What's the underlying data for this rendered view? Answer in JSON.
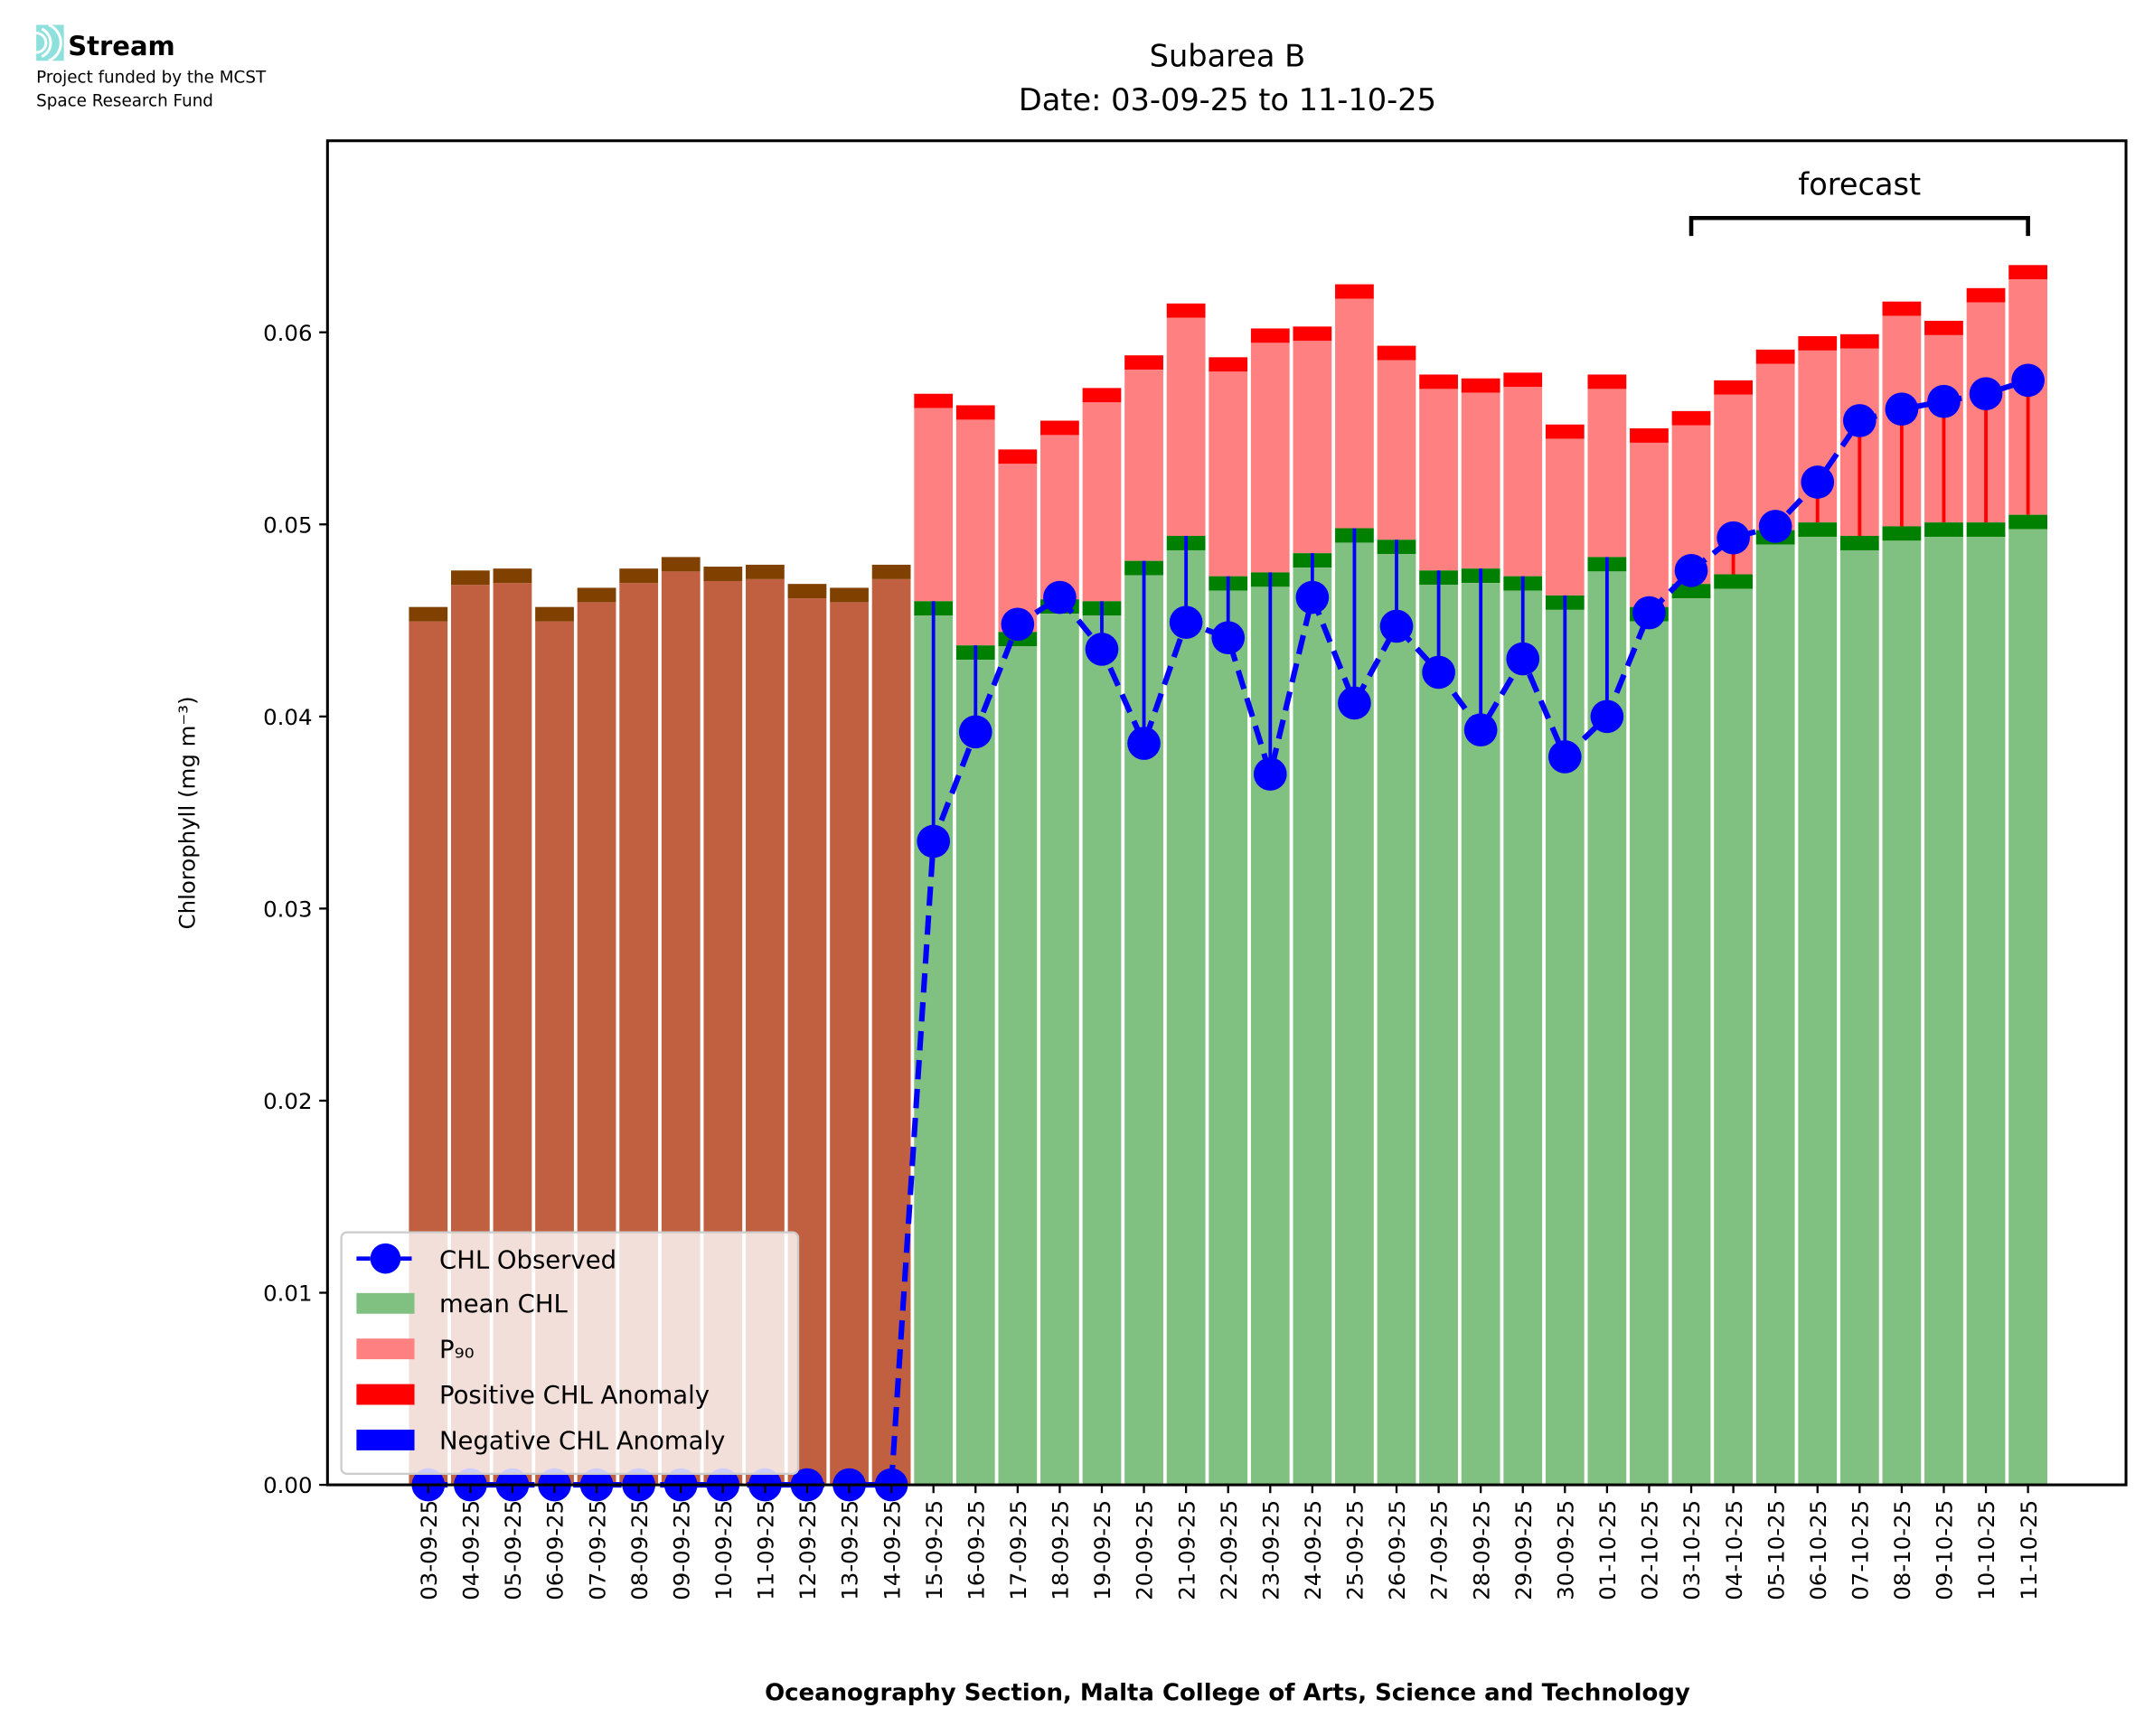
{
  "logo": {
    "name": "Stream",
    "line1": "Project funded by the MCST",
    "line2": "Space Research Fund"
  },
  "chart_data": {
    "type": "bar",
    "title": "Subarea B",
    "subtitle": "Date: 03-09-25 to 11-10-25",
    "xlabel": "Oceanography Section, Malta College of Arts, Science and Technology",
    "ylabel": "Chlorophyll (mg m⁻³)",
    "ylim": [
      0,
      0.07
    ],
    "yticks": [
      "0.00",
      "0.01",
      "0.02",
      "0.03",
      "0.04",
      "0.05",
      "0.06"
    ],
    "ytick_values": [
      0,
      0.01,
      0.02,
      0.03,
      0.04,
      0.05,
      0.06
    ],
    "annotation": "forecast",
    "forecast_range": [
      "03-10-25",
      "11-10-25"
    ],
    "legend": {
      "placement": "lower-left",
      "entries": [
        "CHL Observed",
        "mean CHL",
        "P₉₀",
        "Positive CHL Anomaly",
        "Negative CHL Anomaly"
      ]
    },
    "colors": {
      "observed": "#0000ff",
      "mean": "#80c080",
      "mean_band": "#008000",
      "p90": "#ff8080",
      "p90_cap": "#ff0000",
      "nodata": "#c06040",
      "nodata_cap": "#804000"
    },
    "categories": [
      "03-09-25",
      "04-09-25",
      "05-09-25",
      "06-09-25",
      "07-09-25",
      "08-09-25",
      "09-09-25",
      "10-09-25",
      "11-09-25",
      "12-09-25",
      "13-09-25",
      "14-09-25",
      "15-09-25",
      "16-09-25",
      "17-09-25",
      "18-09-25",
      "19-09-25",
      "20-09-25",
      "21-09-25",
      "22-09-25",
      "23-09-25",
      "24-09-25",
      "25-09-25",
      "26-09-25",
      "27-09-25",
      "28-09-25",
      "29-09-25",
      "30-09-25",
      "01-10-25",
      "02-10-25",
      "03-10-25",
      "04-10-25",
      "05-10-25",
      "06-10-25",
      "07-10-25",
      "08-10-25",
      "09-10-25",
      "10-10-25",
      "11-10-25"
    ],
    "series": [
      {
        "name": "mean CHL",
        "values": [
          0.0457,
          0.0476,
          0.0477,
          0.0457,
          0.0467,
          0.0477,
          0.0483,
          0.0478,
          0.0479,
          0.0469,
          0.0467,
          0.0479,
          0.046,
          0.0437,
          0.0444,
          0.0461,
          0.046,
          0.0481,
          0.0494,
          0.0473,
          0.0475,
          0.0485,
          0.0498,
          0.0492,
          0.0476,
          0.0477,
          0.0473,
          0.0463,
          0.0483,
          0.0457,
          0.0469,
          0.0474,
          0.0497,
          0.0501,
          0.0494,
          0.0499,
          0.0501,
          0.0501,
          0.0505
        ]
      },
      {
        "name": "P90",
        "values": [
          null,
          null,
          null,
          null,
          null,
          null,
          null,
          null,
          null,
          null,
          null,
          null,
          0.0568,
          0.0562,
          0.0539,
          0.0554,
          0.0571,
          0.0588,
          0.0615,
          0.0587,
          0.0602,
          0.0603,
          0.0625,
          0.0593,
          0.0578,
          0.0576,
          0.0579,
          0.0552,
          0.0578,
          0.055,
          0.0559,
          0.0575,
          0.0591,
          0.0598,
          0.0599,
          0.0616,
          0.0606,
          0.0623,
          0.0635
        ]
      },
      {
        "name": "CHL Observed",
        "values": [
          0,
          0,
          0,
          0,
          0,
          0,
          0,
          0,
          0,
          0,
          0,
          0,
          0.0335,
          0.0392,
          0.0448,
          0.0462,
          0.0435,
          0.0386,
          0.0449,
          0.0441,
          0.037,
          0.0462,
          0.0407,
          0.0447,
          0.0423,
          0.0393,
          0.043,
          0.0379,
          0.04,
          0.0454,
          0.0476,
          0.0493,
          0.0499,
          0.0522,
          0.0554,
          0.056,
          0.0564,
          0.0568,
          0.0575
        ]
      }
    ]
  }
}
